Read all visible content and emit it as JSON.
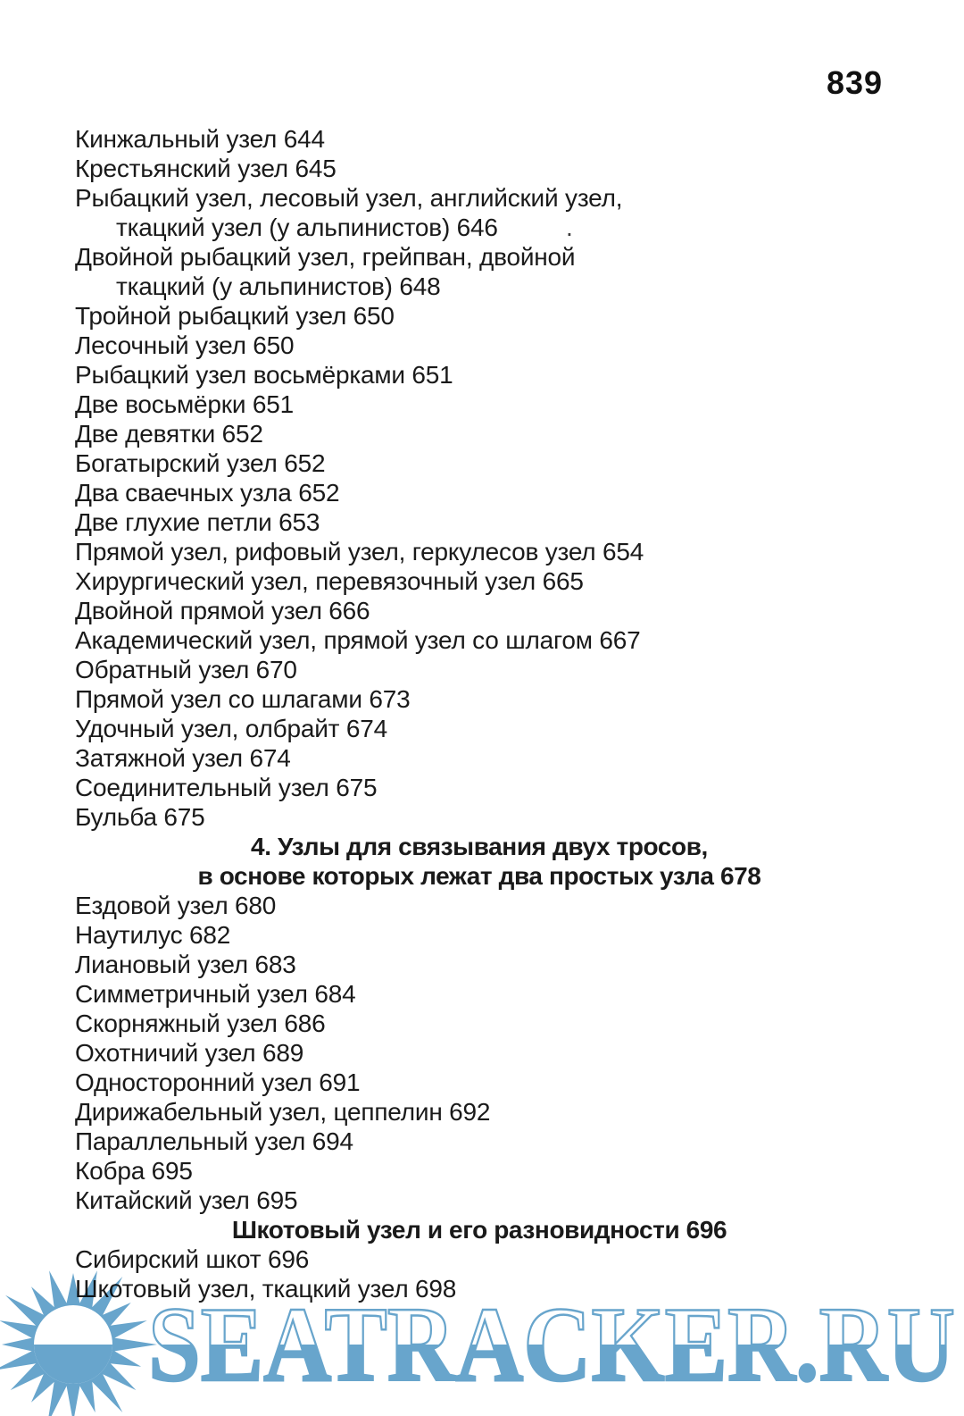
{
  "page": {
    "number": "839"
  },
  "toc": {
    "entries": [
      {
        "type": "item",
        "text": "Кинжальный узел 644"
      },
      {
        "type": "item",
        "text": "Крестьянский узел 645"
      },
      {
        "type": "item",
        "text": "Рыбацкий узел, лесовый узел, английский узел,"
      },
      {
        "type": "indent",
        "text": "ткацкий узел (у альпинистов) 646"
      },
      {
        "type": "item",
        "text": "Двойной рыбацкий узел, грейпван, двойной"
      },
      {
        "type": "indent",
        "text": "ткацкий (у альпинистов) 648"
      },
      {
        "type": "item",
        "text": "Тройной рыбацкий узел 650"
      },
      {
        "type": "item",
        "text": "Лесочный узел 650"
      },
      {
        "type": "item",
        "text": "Рыбацкий узел восьмёрками 651"
      },
      {
        "type": "item",
        "text": "Две восьмёрки 651"
      },
      {
        "type": "item",
        "text": "Две девятки 652"
      },
      {
        "type": "item",
        "text": "Богатырский узел 652"
      },
      {
        "type": "item",
        "text": "Два сваечных узла 652"
      },
      {
        "type": "item",
        "text": "Две глухие петли 653"
      },
      {
        "type": "item",
        "text": "Прямой узел, рифовый узел, геркулесов узел 654"
      },
      {
        "type": "item",
        "text": "Хирургический узел, перевязочный узел 665"
      },
      {
        "type": "item",
        "text": "Двойной прямой узел 666"
      },
      {
        "type": "item",
        "text": "Академический узел, прямой узел со шлагом 667"
      },
      {
        "type": "item",
        "text": "Обратный узел 670"
      },
      {
        "type": "item",
        "text": "Прямой узел со шлагами 673"
      },
      {
        "type": "item",
        "text": "Удочный узел, олбрайт 674"
      },
      {
        "type": "item",
        "text": "Затяжной узел 674"
      },
      {
        "type": "item",
        "text": "Соединительный узел 675"
      },
      {
        "type": "item",
        "text": "Бульба 675"
      },
      {
        "type": "heading",
        "text": "4. Узлы для связывания двух тросов,"
      },
      {
        "type": "heading",
        "text": "в основе которых лежат два простых узла 678"
      },
      {
        "type": "item",
        "text": "Ездовой узел 680"
      },
      {
        "type": "item",
        "text": "Наутилус 682"
      },
      {
        "type": "item",
        "text": "Лиановый узел 683"
      },
      {
        "type": "item",
        "text": "Симметричный узел 684"
      },
      {
        "type": "item",
        "text": "Скорняжный узел 686"
      },
      {
        "type": "item",
        "text": "Охотничий узел 689"
      },
      {
        "type": "item",
        "text": "Односторонний узел 691"
      },
      {
        "type": "item",
        "text": "Дирижабельный узел, цеппелин 692"
      },
      {
        "type": "item",
        "text": "Параллельный узел 694"
      },
      {
        "type": "item",
        "text": "Кобра 695"
      },
      {
        "type": "item",
        "text": "Китайский узел 695"
      },
      {
        "type": "heading",
        "text": "Шкотовый узел и его разновидности 696"
      },
      {
        "type": "item",
        "text": "Сибирский шкот 696"
      },
      {
        "type": "item",
        "text": "Шкотовый узел, ткацкий узел 698"
      }
    ]
  },
  "artifact": {
    "dot": "."
  },
  "watermark": {
    "text": "SEATRACKER.RU",
    "color": "#68a5cc",
    "logo": "sun-with-rays"
  }
}
